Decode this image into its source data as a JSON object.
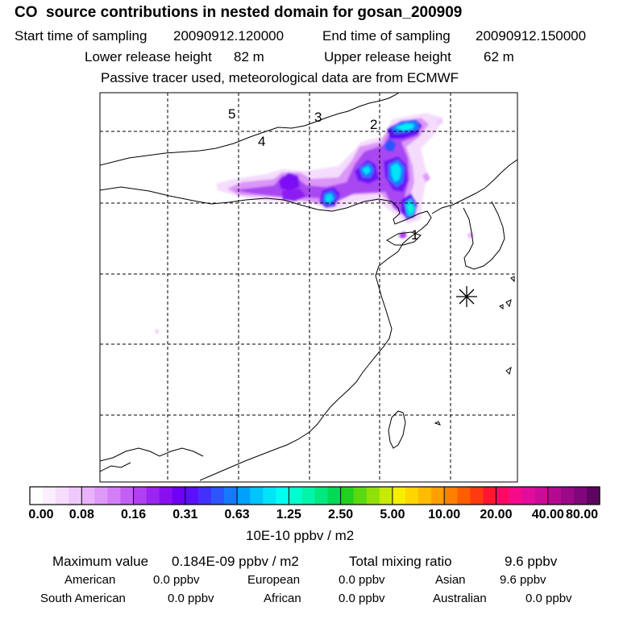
{
  "header": {
    "title": "CO  source contributions in nested domain for gosan_200909",
    "start_label": "Start time of sampling",
    "start_value": "20090912.120000",
    "end_label": "End time of sampling",
    "end_value": "20090912.150000",
    "lower_label": "Lower release height",
    "lower_value": "82 m",
    "upper_label": "Upper release height",
    "upper_value": "62 m",
    "note": "Passive tracer used, meteorological data are from ECMWF"
  },
  "chart_data": {
    "type": "heatmap",
    "title": "CO  source contributions in nested domain for gosan_200909",
    "colorbar": {
      "unit": "10E-10 ppbv / m2",
      "tick_labels": [
        "0.00",
        "0.08",
        "0.16",
        "0.31",
        "0.63",
        "1.25",
        "2.50",
        "5.00",
        "10.00",
        "20.00",
        "40.00",
        "80.00"
      ],
      "colors": [
        "#ffffff",
        "#fbeefe",
        "#f6dcfd",
        "#f0c9fc",
        "#e9b2fb",
        "#df99f9",
        "#d27ff7",
        "#c35ff5",
        "#b041f2",
        "#9a25f0",
        "#8810f0",
        "#6f00f6",
        "#5a10fb",
        "#4430fd",
        "#2c55fe",
        "#157aff",
        "#00a0ff",
        "#00c4fc",
        "#00e5f6",
        "#00fff0",
        "#00ffce",
        "#00f5a8",
        "#00e880",
        "#00da55",
        "#22d11f",
        "#5ad90e",
        "#90e108",
        "#c8ea04",
        "#f7ef00",
        "#ffd600",
        "#ffbb00",
        "#ff9f00",
        "#ff8000",
        "#ff5d00",
        "#ff3a10",
        "#ff1630",
        "#ff0a63",
        "#f50a8c",
        "#e10c9c",
        "#cb0c99",
        "#b50a90",
        "#9c0886",
        "#80077a",
        "#5d055f"
      ]
    },
    "point_labels": [
      "1",
      "2",
      "3",
      "4",
      "5"
    ],
    "receptor_marker": "asterisk"
  },
  "footer": {
    "max_label": "Maximum value",
    "max_value": "0.184E-09 ppbv / m2",
    "total_label": "Total mixing ratio",
    "total_value": "9.6 ppbv",
    "regions": [
      {
        "name": "American",
        "value": "0.0 ppbv"
      },
      {
        "name": "European",
        "value": "0.0 ppbv"
      },
      {
        "name": "Asian",
        "value": "9.6 ppbv"
      },
      {
        "name": "South American",
        "value": "0.0 ppbv"
      },
      {
        "name": "African",
        "value": "0.0 ppbv"
      },
      {
        "name": "Australian",
        "value": "0.0 ppbv"
      }
    ]
  }
}
